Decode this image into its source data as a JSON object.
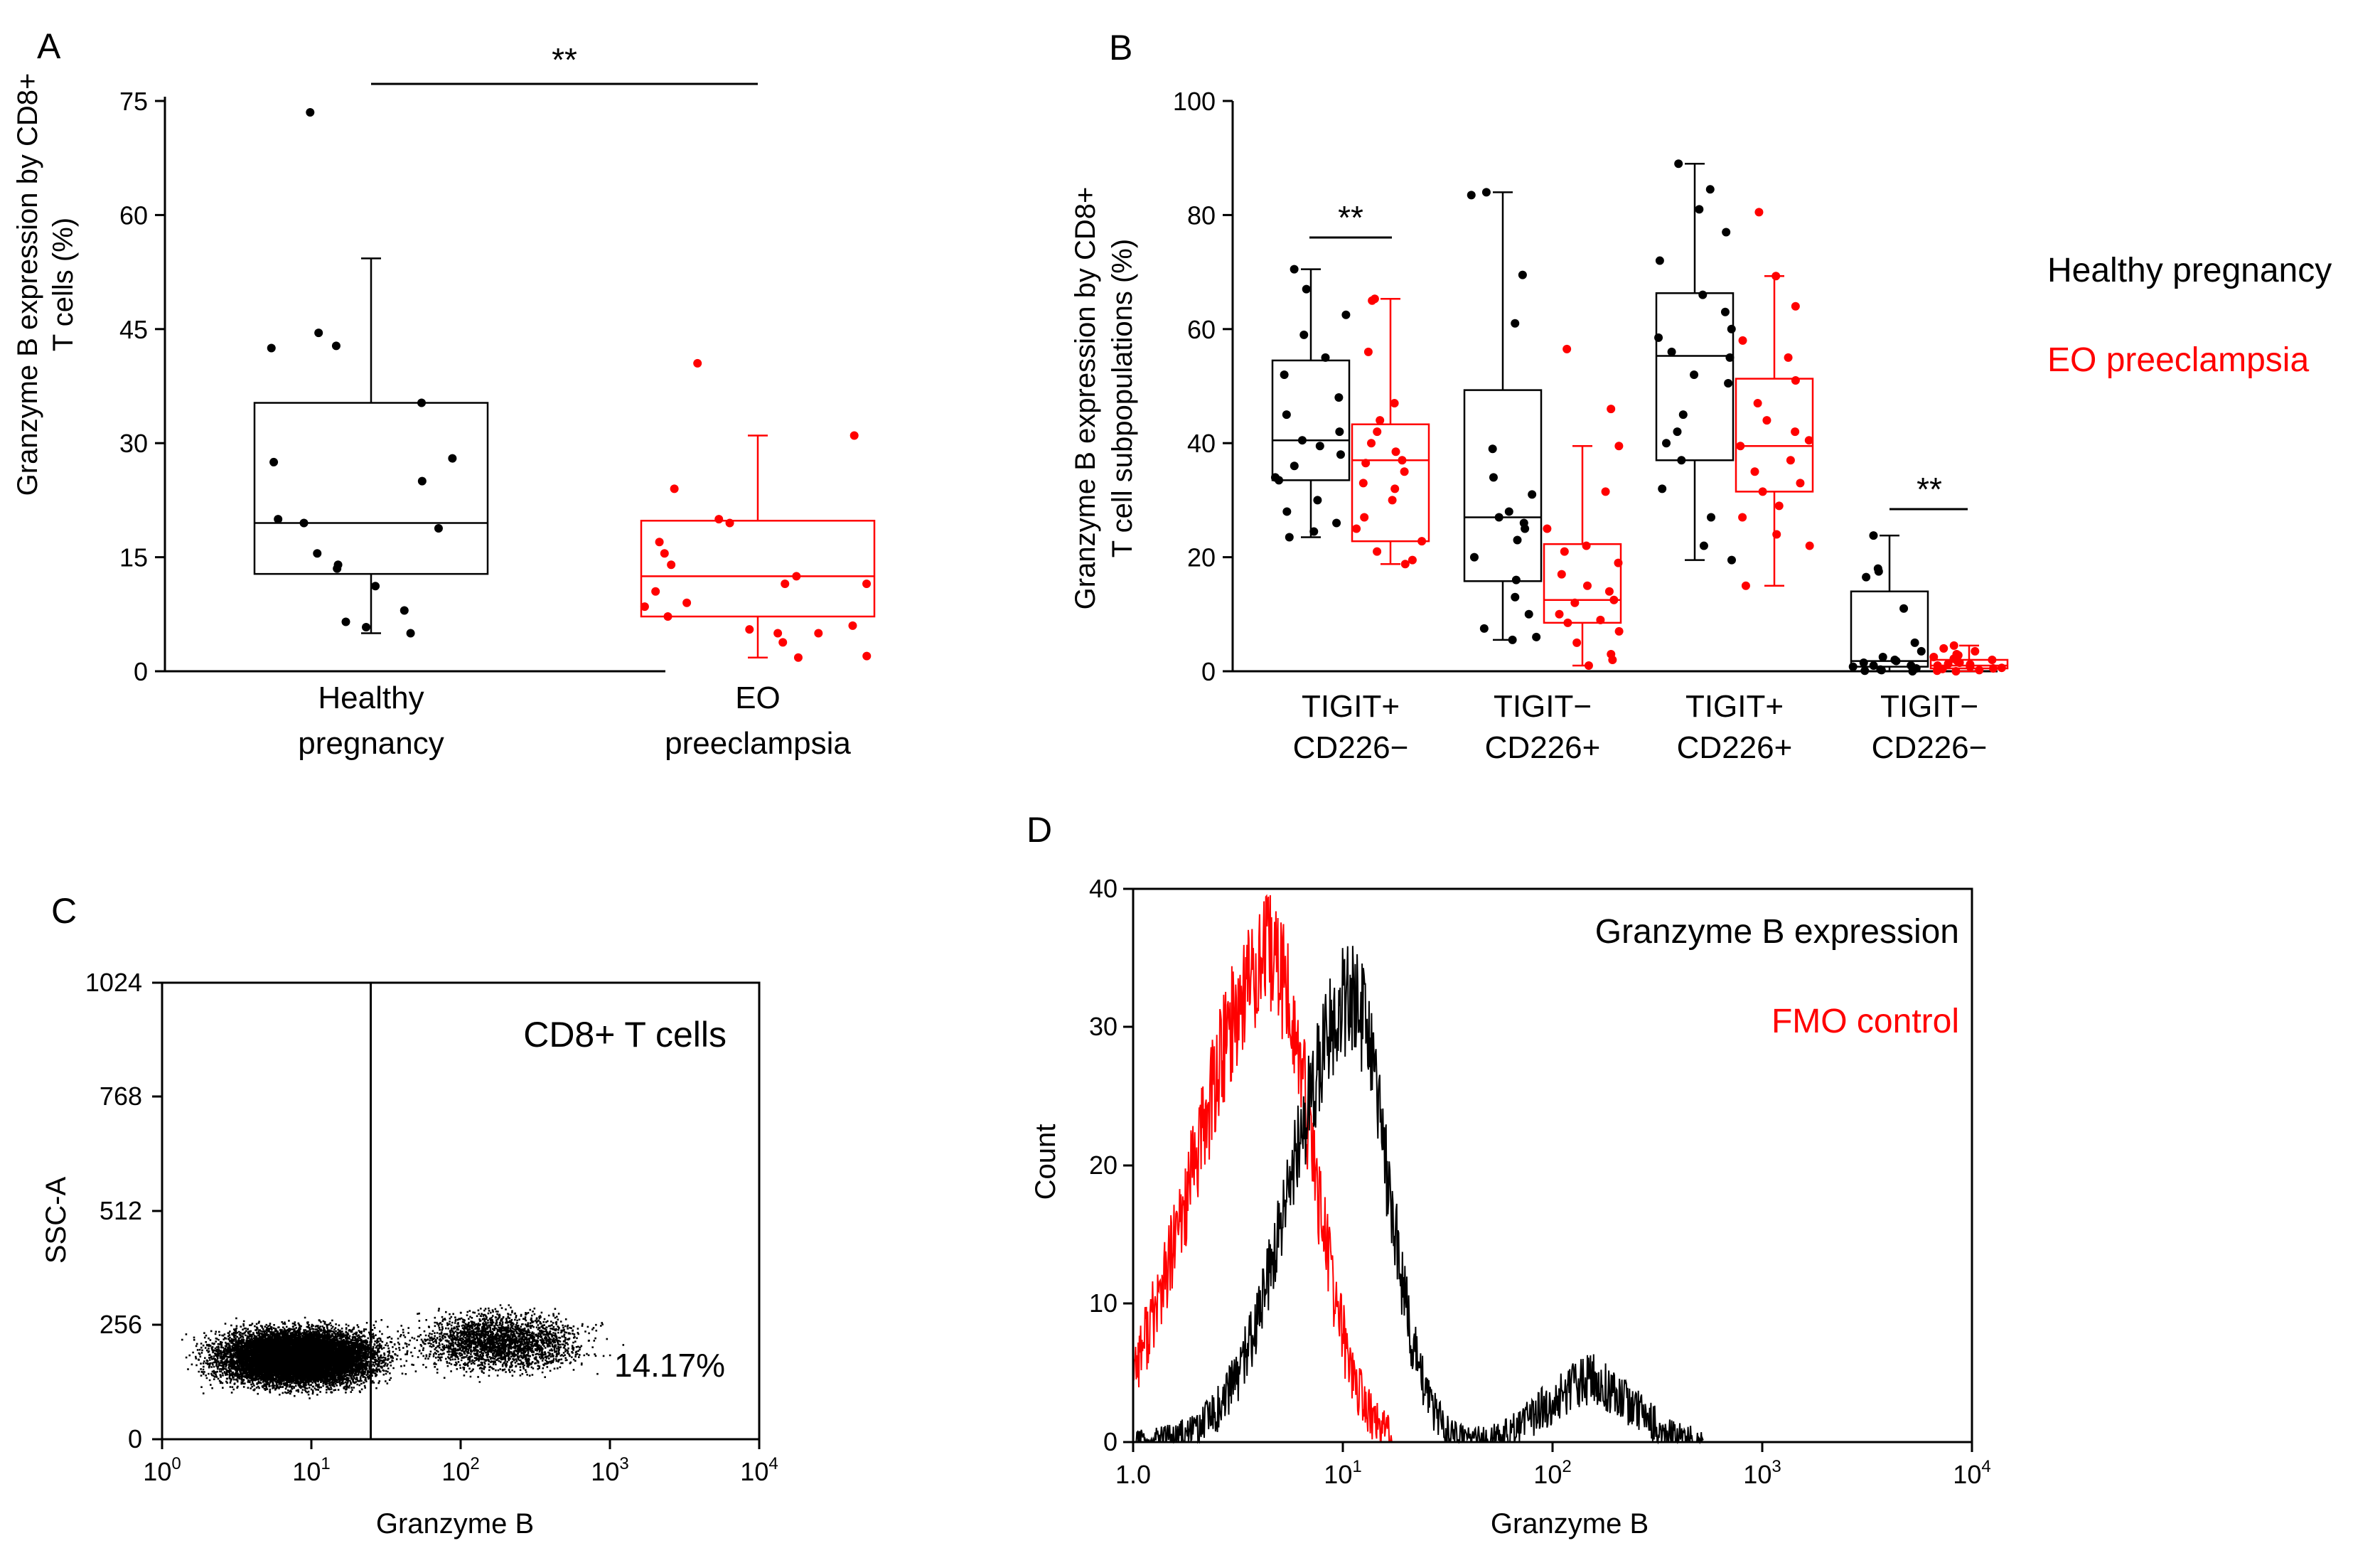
{
  "colors": {
    "healthy": "#000000",
    "eo": "#ff0000"
  },
  "panels": {
    "A": {
      "label": "A",
      "ylabel_line1": "Granzyme B expression by CD8+",
      "ylabel_line2": "T cells (%)",
      "sig": "**"
    },
    "B": {
      "label": "B",
      "ylabel_line1": "Granzyme B expression by CD8+",
      "ylabel_line2": "T cell subpopulations (%)",
      "legend": {
        "healthy": "Healthy pregnancy",
        "eo": "EO preeclampsia"
      },
      "sig1": "**",
      "sig2": "**"
    },
    "C": {
      "label": "C",
      "title": "CD8+ T cells",
      "percent": "14.17%",
      "ylabel": "SSC-A",
      "xlabel": "Granzyme B",
      "yticks": [
        "1024",
        "768",
        "512",
        "256",
        "0"
      ],
      "xtick_base": "10",
      "xtick_exps": [
        "0",
        "1",
        "2",
        "3",
        "4"
      ]
    },
    "D": {
      "label": "D",
      "ylabel": "Count",
      "xlabel": "Granzyme B",
      "legend": {
        "expr": "Granzyme B expression",
        "fmo": "FMO control"
      },
      "yticks": [
        "40",
        "30",
        "20",
        "10",
        "0"
      ],
      "xtick_first": "1.0",
      "xtick_base": "10",
      "xtick_exps": [
        "1",
        "2",
        "3",
        "4"
      ]
    }
  },
  "chart_data": [
    {
      "panel": "A",
      "type": "box",
      "categories": [
        {
          "line1": "Healthy",
          "line2": "pregnancy"
        },
        {
          "line1": "EO",
          "line2": "preeclampsia"
        }
      ],
      "ylim": [
        0,
        75
      ],
      "yticks": [
        0,
        15,
        30,
        45,
        60,
        75
      ],
      "series": [
        {
          "name": "Healthy pregnancy",
          "color": "#000000",
          "box": {
            "min": 5,
            "q1": 12.8,
            "median": 19.5,
            "q3": 35.3,
            "max": 54.3
          },
          "points": [
            73.5,
            44.5,
            42.8,
            42.5,
            35.3,
            28,
            27.5,
            25,
            20,
            19.5,
            18.8,
            15.5,
            14,
            13.5,
            11.2,
            8,
            6.5,
            5.8,
            5
          ]
        },
        {
          "name": "EO preeclampsia",
          "color": "#ff0000",
          "box": {
            "min": 1.8,
            "q1": 7.2,
            "median": 12.5,
            "q3": 19.8,
            "max": 31
          },
          "points": [
            40.5,
            31,
            24,
            20,
            19.5,
            17,
            15.5,
            14,
            12.5,
            11.5,
            11.5,
            10.5,
            9,
            8.5,
            7.2,
            6,
            5.5,
            5,
            5,
            3.8,
            2,
            1.8
          ]
        }
      ],
      "significance": {
        "label": "**",
        "between": [
          0,
          1
        ]
      }
    },
    {
      "panel": "B",
      "type": "box",
      "categories": [
        {
          "line1": "TIGIT+",
          "line2": "CD226−"
        },
        {
          "line1": "TIGIT−",
          "line2": "CD226+"
        },
        {
          "line1": "TIGIT+",
          "line2": "CD226+"
        },
        {
          "line1": "TIGIT−",
          "line2": "CD226−"
        }
      ],
      "ylim": [
        0,
        100
      ],
      "yticks": [
        0,
        20,
        40,
        60,
        80,
        100
      ],
      "series": [
        {
          "name": "Healthy pregnancy",
          "color": "#000000",
          "boxes": [
            {
              "min": 23.5,
              "q1": 33.5,
              "median": 40.5,
              "q3": 54.5,
              "max": 70.5,
              "points": [
                70.5,
                67,
                62.5,
                59,
                55,
                52,
                48,
                45,
                42,
                40.5,
                39.5,
                38,
                36,
                34,
                33.5,
                30,
                28,
                26,
                24.5,
                23.5
              ]
            },
            {
              "min": 5.5,
              "q1": 15.8,
              "median": 27,
              "q3": 49.3,
              "max": 84,
              "points": [
                84,
                83.5,
                69.5,
                61,
                39,
                34,
                31,
                28,
                27,
                26,
                25,
                23,
                20,
                16,
                13,
                10,
                7.5,
                6,
                5.5
              ]
            },
            {
              "min": 19.5,
              "q1": 37,
              "median": 55.3,
              "q3": 66.3,
              "max": 89,
              "points": [
                89,
                84.5,
                81,
                77,
                72,
                66,
                63,
                60,
                58.5,
                56,
                55,
                52,
                50.5,
                45,
                42,
                40,
                37,
                32,
                27,
                22,
                19.5
              ]
            },
            {
              "min": 0,
              "q1": 0.8,
              "median": 1.8,
              "q3": 14,
              "max": 23.8,
              "points": [
                23.8,
                18,
                17.5,
                16.5,
                11,
                5,
                3.5,
                2.5,
                2,
                1.8,
                1.5,
                1,
                1,
                0.8,
                0.5,
                0.3,
                0.2,
                0.1,
                0
              ]
            }
          ]
        },
        {
          "name": "EO preeclampsia",
          "color": "#ff0000",
          "boxes": [
            {
              "min": 18.8,
              "q1": 22.8,
              "median": 37,
              "q3": 43.3,
              "max": 65.3,
              "points": [
                65.3,
                65,
                56,
                47,
                44,
                42,
                40,
                38.5,
                37,
                36.5,
                35,
                33,
                32,
                30,
                27,
                25,
                22.8,
                21,
                19.5,
                18.8
              ]
            },
            {
              "min": 1,
              "q1": 8.5,
              "median": 12.5,
              "q3": 22.3,
              "max": 39.5,
              "points": [
                56.5,
                46,
                39.5,
                31.5,
                25,
                22,
                21,
                19,
                17,
                15,
                14,
                12.5,
                12,
                10,
                9,
                8.5,
                7,
                5,
                3,
                2,
                1
              ]
            },
            {
              "min": 15,
              "q1": 31.5,
              "median": 39.5,
              "q3": 51.3,
              "max": 69.3,
              "points": [
                80.5,
                69.3,
                64,
                58,
                55,
                51,
                47,
                44,
                42,
                40.5,
                39.5,
                37,
                35,
                33,
                31.5,
                29,
                27,
                24,
                22,
                15
              ]
            },
            {
              "min": 0,
              "q1": 0.5,
              "median": 1,
              "q3": 2,
              "max": 4.5,
              "points": [
                4.5,
                4,
                3.5,
                3,
                2.8,
                2.5,
                2.2,
                2,
                1.8,
                1.5,
                1.3,
                1.2,
                1,
                0.8,
                0.6,
                0.5,
                0.4,
                0.2,
                0.1,
                0
              ]
            }
          ]
        }
      ],
      "significance": [
        {
          "label": "**",
          "category": 0
        },
        {
          "label": "**",
          "category": 3
        }
      ]
    },
    {
      "panel": "C",
      "type": "scatter",
      "title": "CD8+ T cells",
      "xlabel": "Granzyme B",
      "ylabel": "SSC-A",
      "xscale": "log",
      "xlim": [
        1,
        10000
      ],
      "ylim": [
        0,
        1024
      ],
      "yticks": [
        0,
        256,
        512,
        768,
        1024
      ],
      "gate_x": 25,
      "gated_percent": 14.17,
      "populations": [
        {
          "center_x": 8,
          "center_y": 185,
          "count": "main"
        },
        {
          "center_x": 180,
          "center_y": 220,
          "count": "minor"
        }
      ]
    },
    {
      "panel": "D",
      "type": "histogram",
      "xlabel": "Granzyme B",
      "ylabel": "Count",
      "xscale": "log",
      "xlim": [
        1,
        10000
      ],
      "ylim": [
        0,
        40
      ],
      "yticks": [
        0,
        10,
        20,
        30,
        40
      ],
      "series": [
        {
          "name": "Granzyme B expression",
          "color": "#000000",
          "peaks": [
            {
              "x": 11,
              "height": 32
            },
            {
              "x": 150,
              "height": 4.5
            }
          ]
        },
        {
          "name": "FMO control",
          "color": "#ff0000",
          "peaks": [
            {
              "x": 4.5,
              "height": 35
            }
          ]
        }
      ]
    }
  ]
}
